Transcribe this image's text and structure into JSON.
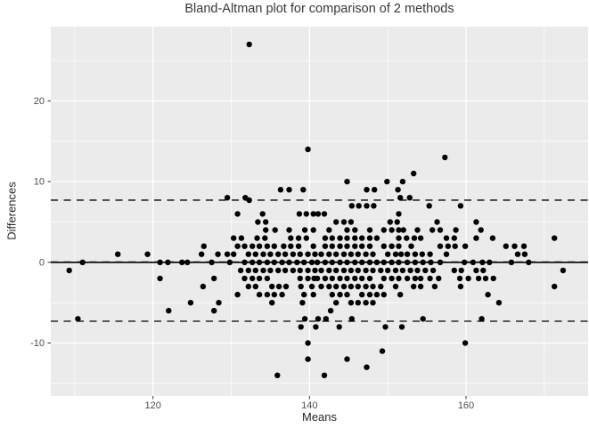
{
  "chart_data": {
    "type": "scatter",
    "title": "Bland-Altman plot for comparison of 2 methods",
    "xlabel": "Means",
    "ylabel": "Differences",
    "xlim": [
      107,
      175.5
    ],
    "ylim": [
      -16.5,
      29.4
    ],
    "grid": true,
    "x_ticks": [
      120,
      140,
      160
    ],
    "y_ticks": [
      -10,
      0,
      10,
      20
    ],
    "x_minor_gridlines": [
      110,
      130,
      150,
      170
    ],
    "y_minor_gridlines": [
      -15,
      -5,
      5,
      15,
      25
    ],
    "lines": {
      "zero_line": 0,
      "mean_line": 0.05,
      "upper_loa": 7.7,
      "lower_loa": -7.3
    },
    "points": [
      [
        132.3,
        27
      ],
      [
        139.8,
        14
      ],
      [
        157.3,
        13
      ],
      [
        153.3,
        11
      ],
      [
        144.8,
        10
      ],
      [
        149.9,
        10
      ],
      [
        151.9,
        10
      ],
      [
        136.3,
        9
      ],
      [
        137.4,
        9
      ],
      [
        139.2,
        9
      ],
      [
        147.3,
        9
      ],
      [
        148.3,
        9
      ],
      [
        151.3,
        9
      ],
      [
        129.5,
        8
      ],
      [
        131.8,
        8
      ],
      [
        151.6,
        8
      ],
      [
        152.8,
        8
      ],
      [
        132.3,
        7.7
      ],
      [
        145.4,
        7
      ],
      [
        146.3,
        7
      ],
      [
        147.3,
        7
      ],
      [
        148.2,
        7
      ],
      [
        155.3,
        7
      ],
      [
        159.3,
        7
      ],
      [
        130.8,
        6
      ],
      [
        134,
        6
      ],
      [
        138.7,
        6
      ],
      [
        139.6,
        6
      ],
      [
        140.5,
        6
      ],
      [
        141.1,
        6
      ],
      [
        141.9,
        6
      ],
      [
        151.4,
        6
      ],
      [
        133.4,
        5
      ],
      [
        134.4,
        5
      ],
      [
        143.4,
        5
      ],
      [
        144.4,
        5
      ],
      [
        145.3,
        5
      ],
      [
        150.3,
        5
      ],
      [
        151.2,
        5
      ],
      [
        156.3,
        5
      ],
      [
        161.3,
        5
      ],
      [
        134.4,
        4
      ],
      [
        135.6,
        4
      ],
      [
        137.4,
        4
      ],
      [
        139.4,
        4
      ],
      [
        140.5,
        4
      ],
      [
        142.5,
        4
      ],
      [
        144.8,
        4
      ],
      [
        145.8,
        4
      ],
      [
        147.7,
        4
      ],
      [
        149.5,
        4
      ],
      [
        150.5,
        4
      ],
      [
        151.4,
        4
      ],
      [
        152,
        4
      ],
      [
        153.8,
        4
      ],
      [
        155.7,
        4
      ],
      [
        156.7,
        4
      ],
      [
        158.7,
        4
      ],
      [
        161.9,
        4
      ],
      [
        130.3,
        3
      ],
      [
        131.3,
        3
      ],
      [
        133.3,
        3
      ],
      [
        134.3,
        3
      ],
      [
        137.6,
        3
      ],
      [
        138.6,
        3
      ],
      [
        139.6,
        3
      ],
      [
        142,
        3
      ],
      [
        142.9,
        3
      ],
      [
        143.9,
        3
      ],
      [
        144.8,
        3
      ],
      [
        145.8,
        3
      ],
      [
        146.7,
        3
      ],
      [
        147.7,
        3
      ],
      [
        148.6,
        3
      ],
      [
        151.4,
        3
      ],
      [
        152.4,
        3
      ],
      [
        153.4,
        3
      ],
      [
        154.2,
        3
      ],
      [
        157.5,
        3
      ],
      [
        158.5,
        3
      ],
      [
        161.3,
        3
      ],
      [
        163.4,
        3
      ],
      [
        171.3,
        3
      ],
      [
        126.5,
        2
      ],
      [
        130.8,
        2
      ],
      [
        131.7,
        2
      ],
      [
        132.7,
        2
      ],
      [
        133.6,
        2
      ],
      [
        134.6,
        2
      ],
      [
        135.5,
        2
      ],
      [
        136.7,
        2
      ],
      [
        137.6,
        2
      ],
      [
        138.6,
        2
      ],
      [
        140.5,
        2
      ],
      [
        142,
        2
      ],
      [
        142.9,
        2
      ],
      [
        143.9,
        2
      ],
      [
        144.8,
        2
      ],
      [
        145.8,
        2
      ],
      [
        146.7,
        2
      ],
      [
        147.7,
        2
      ],
      [
        149.5,
        2
      ],
      [
        150.5,
        2
      ],
      [
        151.4,
        2
      ],
      [
        153,
        2
      ],
      [
        156.7,
        2
      ],
      [
        157.7,
        2
      ],
      [
        158.6,
        2
      ],
      [
        159.9,
        2
      ],
      [
        165.1,
        2
      ],
      [
        166.2,
        2
      ],
      [
        167.4,
        2
      ],
      [
        115.5,
        1
      ],
      [
        119.3,
        1
      ],
      [
        126.2,
        1
      ],
      [
        128.3,
        1
      ],
      [
        129.5,
        1
      ],
      [
        130.3,
        1
      ],
      [
        132.2,
        1
      ],
      [
        133.1,
        1
      ],
      [
        134.1,
        1
      ],
      [
        135,
        1
      ],
      [
        136,
        1
      ],
      [
        136.9,
        1
      ],
      [
        137.9,
        1
      ],
      [
        138.8,
        1
      ],
      [
        139.8,
        1
      ],
      [
        140.7,
        1
      ],
      [
        141.5,
        1
      ],
      [
        142.5,
        1
      ],
      [
        143.4,
        1
      ],
      [
        144.4,
        1
      ],
      [
        145.3,
        1
      ],
      [
        146.2,
        1
      ],
      [
        147.2,
        1
      ],
      [
        148.1,
        1
      ],
      [
        150,
        1
      ],
      [
        151,
        1
      ],
      [
        151.7,
        1
      ],
      [
        152.5,
        1
      ],
      [
        153.5,
        1
      ],
      [
        154.4,
        1
      ],
      [
        155.4,
        1
      ],
      [
        157.5,
        1
      ],
      [
        166.6,
        1
      ],
      [
        167.5,
        1
      ],
      [
        111,
        0
      ],
      [
        120.9,
        0
      ],
      [
        121.9,
        0
      ],
      [
        123.7,
        0
      ],
      [
        124.4,
        0
      ],
      [
        127.5,
        0
      ],
      [
        129.8,
        0
      ],
      [
        131.7,
        0
      ],
      [
        132.7,
        0
      ],
      [
        133.6,
        0
      ],
      [
        134.6,
        0
      ],
      [
        135.5,
        0
      ],
      [
        136.5,
        0
      ],
      [
        137.4,
        0
      ],
      [
        138.4,
        0
      ],
      [
        139.3,
        0
      ],
      [
        140.3,
        0
      ],
      [
        141,
        0
      ],
      [
        142,
        0
      ],
      [
        142.9,
        0
      ],
      [
        143.9,
        0
      ],
      [
        144.8,
        0
      ],
      [
        145.8,
        0
      ],
      [
        146.7,
        0
      ],
      [
        147.7,
        0
      ],
      [
        148.6,
        0
      ],
      [
        149.5,
        0
      ],
      [
        150.5,
        0
      ],
      [
        151.4,
        0
      ],
      [
        152.5,
        0
      ],
      [
        153.5,
        0
      ],
      [
        154.5,
        0
      ],
      [
        155.5,
        0
      ],
      [
        156.7,
        0
      ],
      [
        159.8,
        0
      ],
      [
        160.9,
        0
      ],
      [
        162.1,
        0
      ],
      [
        163,
        0
      ],
      [
        165.8,
        0
      ],
      [
        168,
        0
      ],
      [
        109.3,
        -1
      ],
      [
        131.2,
        -1
      ],
      [
        132.2,
        -1
      ],
      [
        133.1,
        -1
      ],
      [
        134.1,
        -1
      ],
      [
        135,
        -1
      ],
      [
        136,
        -1
      ],
      [
        136.9,
        -1
      ],
      [
        137.9,
        -1
      ],
      [
        138.8,
        -1
      ],
      [
        139.8,
        -1
      ],
      [
        140.7,
        -1
      ],
      [
        141.5,
        -1
      ],
      [
        142.5,
        -1
      ],
      [
        143.4,
        -1
      ],
      [
        144.4,
        -1
      ],
      [
        145.3,
        -1
      ],
      [
        146.2,
        -1
      ],
      [
        147.2,
        -1
      ],
      [
        148.1,
        -1
      ],
      [
        149.1,
        -1
      ],
      [
        150,
        -1
      ],
      [
        151,
        -1
      ],
      [
        151.9,
        -1
      ],
      [
        152.9,
        -1
      ],
      [
        153.8,
        -1
      ],
      [
        154.8,
        -1
      ],
      [
        155.8,
        -1
      ],
      [
        158.5,
        -1
      ],
      [
        159.4,
        -1
      ],
      [
        161.3,
        -1
      ],
      [
        162.2,
        -1
      ],
      [
        172.4,
        -1
      ],
      [
        120.9,
        -2
      ],
      [
        127.8,
        -2
      ],
      [
        131.7,
        -2
      ],
      [
        132.7,
        -2
      ],
      [
        133.6,
        -2
      ],
      [
        134.6,
        -2
      ],
      [
        138.8,
        -2
      ],
      [
        139.8,
        -2
      ],
      [
        140.6,
        -2
      ],
      [
        141,
        -2
      ],
      [
        142,
        -2
      ],
      [
        142.9,
        -2
      ],
      [
        143.9,
        -2
      ],
      [
        144.8,
        -2
      ],
      [
        145.8,
        -2
      ],
      [
        146.7,
        -2
      ],
      [
        147.7,
        -2
      ],
      [
        149.5,
        -2
      ],
      [
        150.5,
        -2
      ],
      [
        151.4,
        -2
      ],
      [
        152.5,
        -2
      ],
      [
        153.5,
        -2
      ],
      [
        154.2,
        -2
      ],
      [
        155.4,
        -2
      ],
      [
        156.5,
        -2
      ],
      [
        159.2,
        -2
      ],
      [
        160.3,
        -2
      ],
      [
        161.6,
        -2
      ],
      [
        162.5,
        -2
      ],
      [
        163.5,
        -2
      ],
      [
        126.4,
        -3
      ],
      [
        132.2,
        -3
      ],
      [
        133.1,
        -3
      ],
      [
        135.2,
        -3
      ],
      [
        136.1,
        -3
      ],
      [
        137,
        -3
      ],
      [
        138.9,
        -3
      ],
      [
        140.3,
        -3
      ],
      [
        141.5,
        -3
      ],
      [
        142.5,
        -3
      ],
      [
        143.4,
        -3
      ],
      [
        144.4,
        -3
      ],
      [
        145.3,
        -3
      ],
      [
        146.2,
        -3
      ],
      [
        147.2,
        -3
      ],
      [
        148.1,
        -3
      ],
      [
        149.1,
        -3
      ],
      [
        151,
        -3
      ],
      [
        153.3,
        -3
      ],
      [
        154.2,
        -3
      ],
      [
        156,
        -3
      ],
      [
        159.3,
        -3
      ],
      [
        171.3,
        -3
      ],
      [
        130.8,
        -4
      ],
      [
        133.6,
        -4
      ],
      [
        134.6,
        -4
      ],
      [
        135.5,
        -4
      ],
      [
        136.5,
        -4
      ],
      [
        139.3,
        -4
      ],
      [
        140.5,
        -4
      ],
      [
        142.9,
        -4
      ],
      [
        143.9,
        -4
      ],
      [
        144.8,
        -4
      ],
      [
        146.7,
        -4
      ],
      [
        147.7,
        -4
      ],
      [
        148.6,
        -4
      ],
      [
        149.5,
        -4
      ],
      [
        151.6,
        -4
      ],
      [
        162.8,
        -4
      ],
      [
        124.8,
        -5
      ],
      [
        128.4,
        -5
      ],
      [
        135.2,
        -5
      ],
      [
        139.1,
        -5
      ],
      [
        143.4,
        -5
      ],
      [
        145.3,
        -5
      ],
      [
        146.2,
        -5
      ],
      [
        147.2,
        -5
      ],
      [
        148.1,
        -5
      ],
      [
        164.2,
        -5
      ],
      [
        122,
        -6
      ],
      [
        127.8,
        -6
      ],
      [
        142.7,
        -6
      ],
      [
        110.4,
        -7
      ],
      [
        139.4,
        -7
      ],
      [
        141.1,
        -7
      ],
      [
        142.1,
        -7
      ],
      [
        145.4,
        -7
      ],
      [
        154.5,
        -7
      ],
      [
        162,
        -7
      ],
      [
        138.9,
        -8
      ],
      [
        140.8,
        -8
      ],
      [
        143.8,
        -8
      ],
      [
        149.7,
        -8
      ],
      [
        151.8,
        -8
      ],
      [
        139.8,
        -10
      ],
      [
        159.9,
        -10
      ],
      [
        149.3,
        -11
      ],
      [
        139.8,
        -12
      ],
      [
        144.8,
        -12
      ],
      [
        147.3,
        -13
      ],
      [
        135.9,
        -14
      ],
      [
        141.9,
        -14
      ]
    ]
  },
  "colors": {
    "panel_bg": "#EBEBEB",
    "grid": "#FFFFFF",
    "point": "#000000",
    "line": "#000000",
    "tick_text": "#4D4D4D",
    "axis_title": "#262626",
    "title": "#383838",
    "outer_bg": "#FFFFFF"
  }
}
